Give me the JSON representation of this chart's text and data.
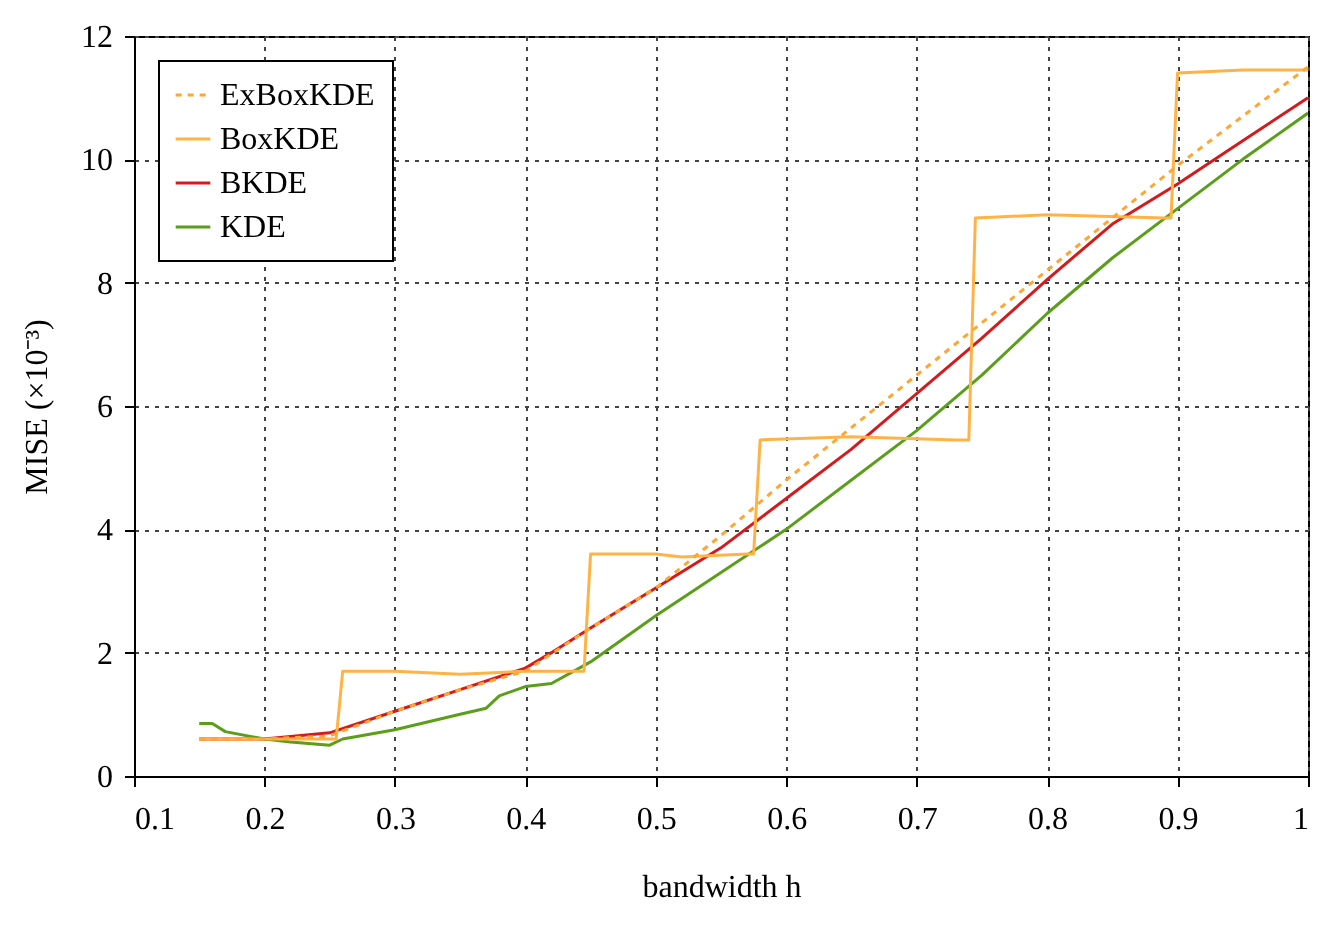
{
  "chart_data": {
    "type": "line",
    "xlabel": "bandwidth h",
    "ylabel": "MISE (×10⁻³)",
    "xlim": [
      0.1,
      1
    ],
    "ylim": [
      0,
      12
    ],
    "xticks": [
      0.1,
      0.2,
      0.3,
      0.4,
      0.5,
      0.6,
      0.7,
      0.8,
      0.9,
      {
        "value": 1,
        "label": "1"
      }
    ],
    "yticks": [
      0,
      2,
      4,
      6,
      8,
      10,
      12
    ],
    "grid": true,
    "legend": "top left",
    "series": [
      {
        "name": "ExBoxKDE",
        "color": "#ffa530",
        "line_style": "dotted",
        "x": [
          0.15,
          0.2,
          0.25,
          0.3,
          0.35,
          0.4,
          0.45,
          0.5,
          0.55,
          0.6,
          0.65,
          0.7,
          0.75,
          0.8,
          0.85,
          0.9,
          0.95,
          1.0
        ],
        "values": [
          0.6,
          0.6,
          0.65,
          1.05,
          1.4,
          1.7,
          2.4,
          3.05,
          3.9,
          4.8,
          5.65,
          6.5,
          7.35,
          8.2,
          9.05,
          9.9,
          10.7,
          11.5
        ]
      },
      {
        "name": "BoxKDE",
        "color": "#ffb347",
        "x": [
          0.15,
          0.2,
          0.255,
          0.26,
          0.3,
          0.35,
          0.4,
          0.44,
          0.445,
          0.45,
          0.5,
          0.52,
          0.57,
          0.575,
          0.58,
          0.65,
          0.73,
          0.74,
          0.745,
          0.8,
          0.89,
          0.895,
          0.9,
          0.95,
          1.0
        ],
        "values": [
          0.6,
          0.6,
          0.6,
          1.7,
          1.7,
          1.65,
          1.7,
          1.7,
          1.7,
          3.6,
          3.6,
          3.55,
          3.6,
          3.6,
          5.45,
          5.5,
          5.45,
          5.45,
          9.05,
          9.1,
          9.05,
          9.05,
          11.4,
          11.45,
          11.45
        ]
      },
      {
        "name": "BKDE",
        "color": "#d7191c",
        "x": [
          0.15,
          0.2,
          0.25,
          0.3,
          0.35,
          0.4,
          0.42,
          0.45,
          0.5,
          0.55,
          0.6,
          0.65,
          0.7,
          0.75,
          0.8,
          0.85,
          0.9,
          0.95,
          1.0
        ],
        "values": [
          0.6,
          0.6,
          0.7,
          1.05,
          1.4,
          1.75,
          2.0,
          2.4,
          3.05,
          3.7,
          4.5,
          5.3,
          6.2,
          7.1,
          8.05,
          8.95,
          9.6,
          10.3,
          11.0
        ]
      },
      {
        "name": "KDE",
        "color": "#5a9e1a",
        "x": [
          0.15,
          0.16,
          0.17,
          0.2,
          0.22,
          0.25,
          0.26,
          0.3,
          0.35,
          0.37,
          0.38,
          0.4,
          0.42,
          0.45,
          0.5,
          0.55,
          0.6,
          0.65,
          0.7,
          0.75,
          0.8,
          0.85,
          0.9,
          0.95,
          1.0
        ],
        "values": [
          0.85,
          0.85,
          0.72,
          0.6,
          0.55,
          0.5,
          0.6,
          0.75,
          1.0,
          1.1,
          1.3,
          1.45,
          1.5,
          1.85,
          2.6,
          3.3,
          4.0,
          4.8,
          5.6,
          6.5,
          7.5,
          8.4,
          9.2,
          10.0,
          10.75
        ]
      }
    ]
  }
}
